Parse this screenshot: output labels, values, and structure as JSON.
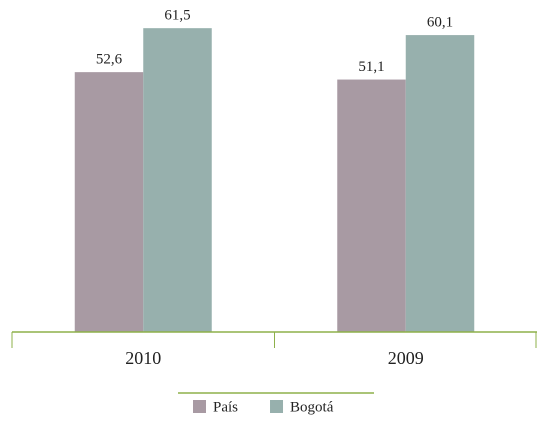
{
  "chart_data": {
    "type": "bar",
    "categories": [
      "2010",
      "2009"
    ],
    "series": [
      {
        "name": "País",
        "color": "#a89aa3",
        "values": [
          52.6,
          51.1
        ],
        "value_labels": [
          "52,6",
          "51,1"
        ]
      },
      {
        "name": "Bogotá",
        "color": "#97b0ad",
        "values": [
          61.5,
          60.1
        ],
        "value_labels": [
          "61,5",
          "60,1"
        ]
      }
    ],
    "ylim": [
      0,
      67
    ],
    "axis_color": "#8db04a",
    "legend": "bottom"
  }
}
